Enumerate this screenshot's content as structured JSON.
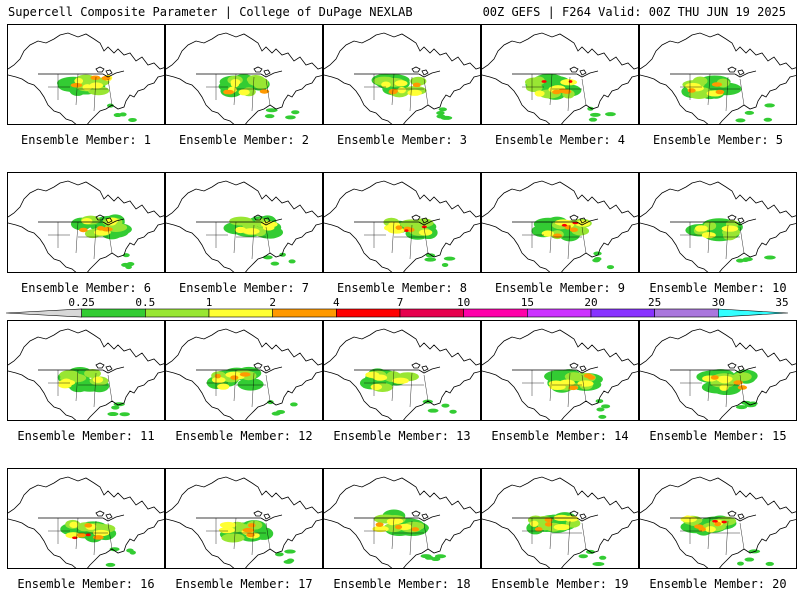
{
  "header": {
    "left": "Supercell Composite Parameter | College of DuPage NEXLAB",
    "right": "00Z GEFS | F264 Valid: 00Z THU JUN 19 2025"
  },
  "colorbar": {
    "ticks": [
      "0.25",
      "0.5",
      "1",
      "2",
      "4",
      "7",
      "10",
      "15",
      "20",
      "25",
      "30",
      "35"
    ],
    "colors": [
      "#d8d8d8",
      "#33cc33",
      "#99e633",
      "#ffff33",
      "#ff9900",
      "#ff0000",
      "#e6004d",
      "#ff00aa",
      "#cc33ff",
      "#8833ff",
      "#aa77dd",
      "#33ffff"
    ]
  },
  "members": [
    {
      "label": "Ensemble Member: 1",
      "intensity": 2
    },
    {
      "label": "Ensemble Member: 2",
      "intensity": 2
    },
    {
      "label": "Ensemble Member: 3",
      "intensity": 2
    },
    {
      "label": "Ensemble Member: 4",
      "intensity": 3
    },
    {
      "label": "Ensemble Member: 5",
      "intensity": 2
    },
    {
      "label": "Ensemble Member: 6",
      "intensity": 2
    },
    {
      "label": "Ensemble Member: 7",
      "intensity": 1
    },
    {
      "label": "Ensemble Member: 8",
      "intensity": 3
    },
    {
      "label": "Ensemble Member: 9",
      "intensity": 3
    },
    {
      "label": "Ensemble Member: 10",
      "intensity": 1
    },
    {
      "label": "Ensemble Member: 11",
      "intensity": 1
    },
    {
      "label": "Ensemble Member: 12",
      "intensity": 2
    },
    {
      "label": "Ensemble Member: 13",
      "intensity": 1
    },
    {
      "label": "Ensemble Member: 14",
      "intensity": 2
    },
    {
      "label": "Ensemble Member: 15",
      "intensity": 2
    },
    {
      "label": "Ensemble Member: 16",
      "intensity": 3
    },
    {
      "label": "Ensemble Member: 17",
      "intensity": 2
    },
    {
      "label": "Ensemble Member: 18",
      "intensity": 2
    },
    {
      "label": "Ensemble Member: 19",
      "intensity": 2
    },
    {
      "label": "Ensemble Member: 20",
      "intensity": 3
    }
  ]
}
